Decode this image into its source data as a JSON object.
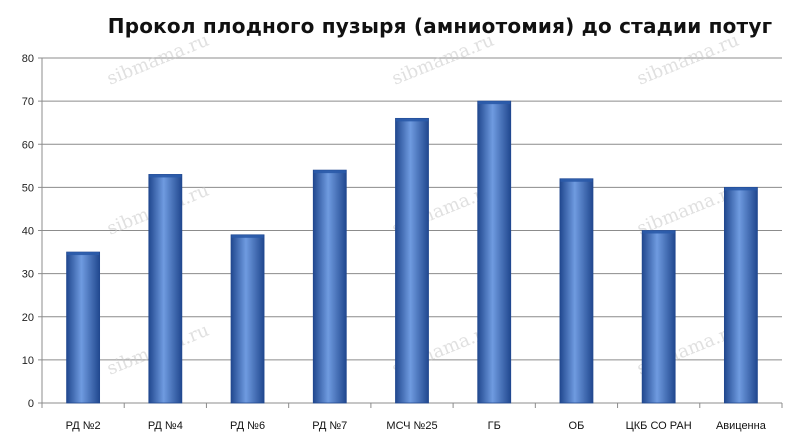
{
  "chart_data": {
    "type": "bar",
    "title": "Прокол плодного пузыря (амниотомия) до стадии потуг",
    "xlabel": "",
    "ylabel": "",
    "categories": [
      "РД №2",
      "РД №4",
      "РД №6",
      "РД №7",
      "МСЧ №25",
      "ГБ",
      "ОБ",
      "ЦКБ СО РАН",
      "Авиценна"
    ],
    "values": [
      35,
      53,
      39,
      54,
      66,
      70,
      52,
      40,
      50
    ],
    "ylim": [
      0,
      80
    ],
    "yticks": [
      0,
      10,
      20,
      30,
      40,
      50,
      60,
      70,
      80
    ],
    "grid": true,
    "legend": "none",
    "bar_color": "#3a6fc4",
    "bar_color_dark": "#21488f",
    "bar_color_light": "#6f9be0"
  },
  "watermark": "sibmama.ru"
}
